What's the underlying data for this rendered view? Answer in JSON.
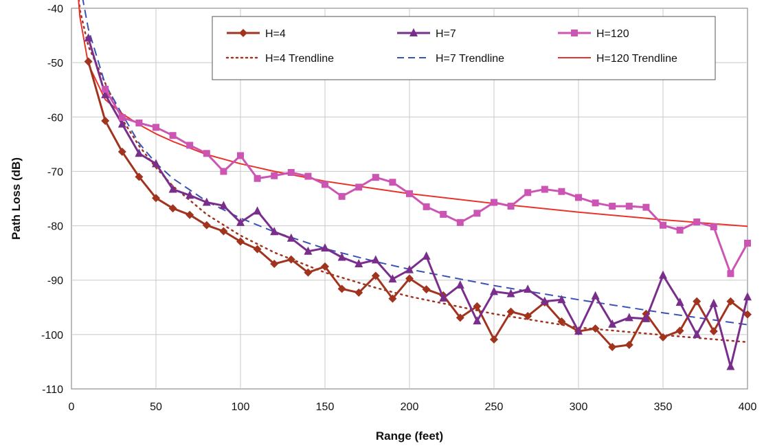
{
  "chart_data": {
    "type": "line",
    "xlabel": "Range (feet)",
    "ylabel": "Path Loss (dB)",
    "xlim": [
      0,
      400
    ],
    "ylim": [
      -110,
      -40
    ],
    "xticks": [
      0,
      50,
      100,
      150,
      200,
      250,
      300,
      350,
      400
    ],
    "yticks": [
      -40,
      -50,
      -60,
      -70,
      -80,
      -90,
      -100,
      -110
    ],
    "grid": true,
    "legend_position": "top-right",
    "series": [
      {
        "name": "H=4",
        "color": "#a0341f",
        "marker": "diamond",
        "x": [
          10,
          20,
          30,
          40,
          50,
          60,
          70,
          80,
          90,
          100,
          110,
          120,
          130,
          140,
          150,
          160,
          170,
          180,
          190,
          200,
          210,
          220,
          230,
          240,
          250,
          260,
          270,
          280,
          290,
          300,
          310,
          320,
          330,
          340,
          350,
          360,
          370,
          380,
          390,
          400
        ],
        "values": [
          -49.8,
          -60.7,
          -66.4,
          -71,
          -74.9,
          -76.8,
          -78,
          -79.9,
          -81,
          -82.9,
          -84.3,
          -87,
          -86.2,
          -88.6,
          -87.5,
          -91.6,
          -92.3,
          -89.2,
          -93.4,
          -89.7,
          -91.7,
          -92.8,
          -96.9,
          -94.8,
          -100.9,
          -95.8,
          -96.6,
          -94.1,
          -97.6,
          -99.4,
          -98.9,
          -102.3,
          -101.9,
          -96.2,
          -100.5,
          -99.3,
          -93.9,
          -99.4,
          -93.9,
          -96.3
        ]
      },
      {
        "name": "H=7",
        "color": "#7a2e8c",
        "marker": "triangle",
        "x": [
          10,
          20,
          30,
          40,
          50,
          60,
          70,
          80,
          90,
          100,
          110,
          120,
          130,
          140,
          150,
          160,
          170,
          180,
          190,
          200,
          210,
          220,
          230,
          240,
          250,
          260,
          270,
          280,
          290,
          300,
          310,
          320,
          330,
          340,
          350,
          360,
          370,
          380,
          390,
          400
        ],
        "values": [
          -45.5,
          -55.9,
          -61.3,
          -66.7,
          -68.6,
          -73.3,
          -74.4,
          -75.7,
          -76.3,
          -79.4,
          -77.3,
          -81.1,
          -82.3,
          -84.7,
          -84.1,
          -85.8,
          -87,
          -86.3,
          -89.8,
          -88.1,
          -85.6,
          -93.3,
          -90.9,
          -97.5,
          -92.1,
          -92.5,
          -91.7,
          -93.9,
          -93.6,
          -99.4,
          -92.9,
          -98.1,
          -96.9,
          -97.1,
          -89.1,
          -94.1,
          -100,
          -94.3,
          -105.9,
          -93.1
        ]
      },
      {
        "name": "H=120",
        "color": "#cc55b4",
        "marker": "square",
        "x": [
          20,
          30,
          40,
          50,
          60,
          70,
          80,
          90,
          100,
          110,
          120,
          130,
          140,
          150,
          160,
          170,
          180,
          190,
          200,
          210,
          220,
          230,
          240,
          250,
          260,
          270,
          280,
          290,
          300,
          310,
          320,
          330,
          340,
          350,
          360,
          370,
          380,
          390,
          400
        ],
        "values": [
          -54.9,
          -60.1,
          -61.1,
          -61.9,
          -63.4,
          -65.2,
          -66.7,
          -70,
          -67.1,
          -71.3,
          -70.8,
          -70.2,
          -70.9,
          -72.4,
          -74.6,
          -72.9,
          -71.1,
          -72,
          -74.1,
          -76.5,
          -77.9,
          -79.4,
          -77.7,
          -75.7,
          -76.4,
          -73.9,
          -73.3,
          -73.7,
          -74.8,
          -75.8,
          -76.4,
          -76.4,
          -76.6,
          -79.9,
          -80.8,
          -79.3,
          -80.2,
          -88.8,
          -83.2
        ]
      },
      {
        "name": "H=4 Trendline",
        "color": "#a0341f",
        "line_style": "dotted",
        "x": [
          2,
          5,
          10,
          20,
          30,
          40,
          50,
          60,
          80,
          100,
          120,
          150,
          180,
          200,
          250,
          300,
          350,
          400
        ],
        "values": [
          -31.4,
          -40.3,
          -47,
          -53.8,
          -60.4,
          -65.3,
          -69.3,
          -72.7,
          -77.9,
          -81.8,
          -84.9,
          -88.6,
          -91.4,
          -93,
          -96.2,
          -98.7,
          -100.1,
          -101.4
        ]
      },
      {
        "name": "H=7 Trendline",
        "color": "#3a52b4",
        "line_style": "dashed",
        "x": [
          2,
          5,
          10,
          20,
          30,
          40,
          50,
          60,
          80,
          100,
          120,
          150,
          180,
          200,
          250,
          300,
          350,
          400
        ],
        "values": [
          -26,
          -35.5,
          -43.8,
          -54,
          -59.5,
          -64.8,
          -68.5,
          -71.3,
          -75.5,
          -78.6,
          -81.1,
          -84.2,
          -86.6,
          -88,
          -91,
          -93.6,
          -96,
          -98.2
        ]
      },
      {
        "name": "H=120 Trendline",
        "color": "#e8332a",
        "line_style": "solid",
        "x": [
          2,
          5,
          10,
          20,
          30,
          40,
          50,
          60,
          80,
          100,
          120,
          150,
          180,
          200,
          250,
          300,
          350,
          400
        ],
        "values": [
          -30,
          -41.6,
          -50.3,
          -56.8,
          -59.4,
          -61.4,
          -63.1,
          -64.5,
          -66.9,
          -68.6,
          -70,
          -71.8,
          -73.2,
          -74.1,
          -75.9,
          -77.5,
          -78.9,
          -80.1
        ]
      }
    ]
  }
}
